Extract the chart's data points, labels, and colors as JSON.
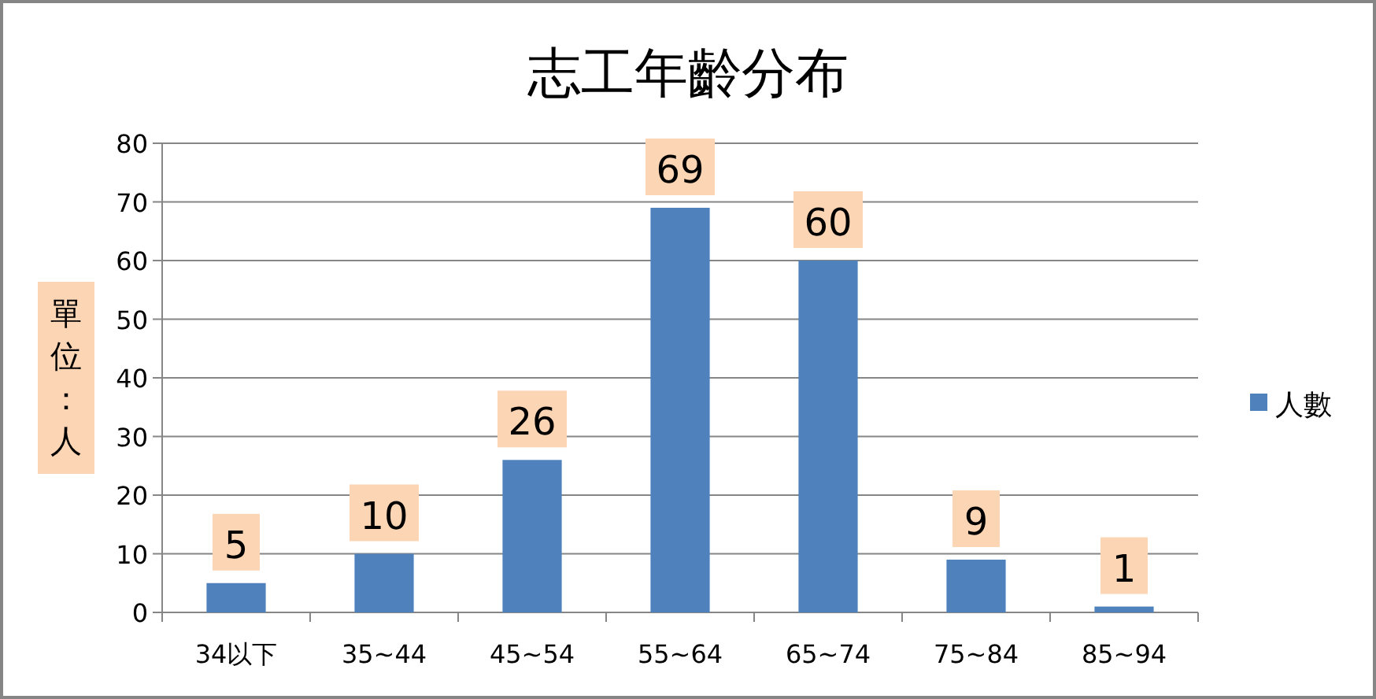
{
  "chart_data": {
    "type": "bar",
    "title": "志工年齡分布",
    "ylabel": "單位：人",
    "categories": [
      "34以下",
      "35~44",
      "45~54",
      "55~64",
      "65~74",
      "75~84",
      "85~94"
    ],
    "series": [
      {
        "name": "人數",
        "color": "#4f81bd",
        "values": [
          5,
          10,
          26,
          69,
          60,
          9,
          1
        ]
      }
    ],
    "ylim": [
      0,
      80
    ],
    "yticks": [
      0,
      10,
      20,
      30,
      40,
      50,
      60,
      70,
      80
    ],
    "grid": "y",
    "legend": "right",
    "data_labels": true
  }
}
